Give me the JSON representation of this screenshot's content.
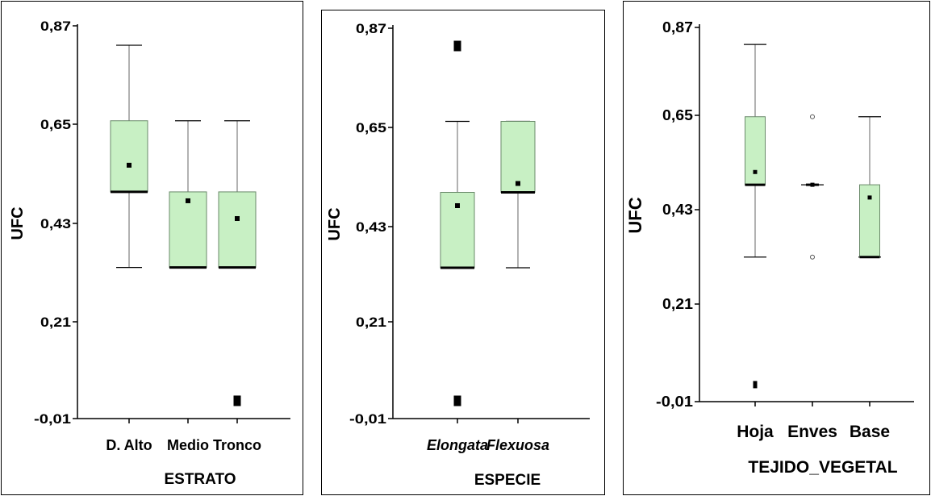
{
  "colors": {
    "box_fill": "#c8f0c4",
    "line": "#000000",
    "whisker": "#666666"
  },
  "chart_data": [
    {
      "type": "box",
      "xlabel": "ESTRATO",
      "ylabel": "UFC",
      "ylim": [
        -0.01,
        0.87
      ],
      "yticks": [
        "0,87",
        "0,65",
        "0,43",
        "0,21",
        "-0,01"
      ],
      "ytick_values": [
        0.87,
        0.65,
        0.43,
        0.21,
        -0.01
      ],
      "categories": [
        "D. Alto",
        "Medio",
        "Tronco"
      ],
      "boxes": [
        {
          "category": "D. Alto",
          "whisker_low": 0.33,
          "q1": 0.5,
          "median": 0.5,
          "q3": 0.66,
          "whisker_high": 0.83,
          "mean": 0.56,
          "outliers": []
        },
        {
          "category": "Medio",
          "whisker_low": 0.33,
          "q1": 0.33,
          "median": 0.33,
          "q3": 0.5,
          "whisker_high": 0.66,
          "mean": 0.48,
          "outliers": []
        },
        {
          "category": "Tronco",
          "whisker_low": 0.33,
          "q1": 0.33,
          "median": 0.33,
          "q3": 0.5,
          "whisker_high": 0.66,
          "mean": 0.44,
          "outliers": [
            0.03
          ]
        }
      ]
    },
    {
      "type": "box",
      "xlabel": "ESPECIE",
      "ylabel": "UFC",
      "ylim": [
        -0.01,
        0.87
      ],
      "yticks": [
        "0,87",
        "0,65",
        "0,43",
        "0,21",
        "-0,01"
      ],
      "ytick_values": [
        0.87,
        0.65,
        0.43,
        0.21,
        -0.01
      ],
      "categories": [
        "Elongata",
        "Flexuosa"
      ],
      "boxes": [
        {
          "category": "Elongata",
          "whisker_low": 0.33,
          "q1": 0.33,
          "median": 0.33,
          "q3": 0.5,
          "whisker_high": 0.66,
          "mean": 0.47,
          "outliers": [
            0.83,
            0.03
          ]
        },
        {
          "category": "Flexuosa",
          "whisker_low": 0.33,
          "q1": 0.5,
          "median": 0.5,
          "q3": 0.66,
          "whisker_high": 0.66,
          "mean": 0.52,
          "outliers": []
        }
      ]
    },
    {
      "type": "box",
      "xlabel": "TEJIDO_VEGETAL",
      "ylabel": "UFC",
      "ylim": [
        -0.01,
        0.87
      ],
      "yticks": [
        "0,87",
        "0,65",
        "0,43",
        "0,21",
        "-0,01"
      ],
      "ytick_values": [
        0.87,
        0.65,
        0.43,
        0.21,
        -0.01
      ],
      "categories": [
        "Hoja",
        "Enves",
        "Base"
      ],
      "boxes": [
        {
          "category": "Hoja",
          "whisker_low": 0.33,
          "q1": 0.5,
          "median": 0.5,
          "q3": 0.66,
          "whisker_high": 0.83,
          "mean": 0.53,
          "outliers": [
            0.03
          ]
        },
        {
          "category": "Enves",
          "whisker_low": 0.5,
          "q1": 0.5,
          "median": 0.5,
          "q3": 0.5,
          "whisker_high": 0.5,
          "mean": 0.5,
          "outliers": [
            0.66,
            0.33
          ]
        },
        {
          "category": "Base",
          "whisker_low": 0.33,
          "q1": 0.33,
          "median": 0.33,
          "q3": 0.5,
          "whisker_high": 0.66,
          "mean": 0.47,
          "outliers": []
        }
      ]
    }
  ]
}
